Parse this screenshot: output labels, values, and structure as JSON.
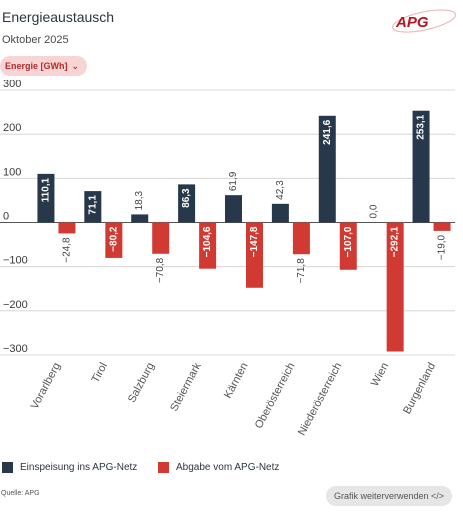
{
  "header": {
    "title": "Energieaustausch",
    "subtitle": "Oktober 2025",
    "logo_text": "APG"
  },
  "filter": {
    "label": "Energie [GWh]"
  },
  "footer": {
    "source": "Quelle: APG",
    "reuse_button": "Grafik weiterverwenden </>"
  },
  "colors": {
    "einspeisung": "#263849",
    "abgabe": "#d13a32",
    "accent": "#c4262e"
  },
  "chart_data": {
    "type": "bar",
    "categories": [
      "Vorarlberg",
      "Tirol",
      "Salzburg",
      "Steiermark",
      "Kärnten",
      "Oberösterreich",
      "Niederösterreich",
      "Wien",
      "Burgenland"
    ],
    "series": [
      {
        "name": "Einspeisung ins APG-Netz",
        "values": [
          110.1,
          71.1,
          18.3,
          86.3,
          61.9,
          42.3,
          241.6,
          0.0,
          253.1
        ],
        "labels": [
          "110,1",
          "71,1",
          "18,3",
          "86,3",
          "61,9",
          "42,3",
          "241,6",
          "0,0",
          "253,1"
        ]
      },
      {
        "name": "Abgabe vom APG-Netz",
        "values": [
          -24.8,
          -80.2,
          -70.8,
          -104.6,
          -147.8,
          -71.8,
          -107.0,
          -292.1,
          -19.0
        ],
        "labels": [
          "−24,8",
          "−80,2",
          "−70,8",
          "−104,6",
          "−147,8",
          "−71,8",
          "−107,0",
          "−292,1",
          "−19,0"
        ]
      }
    ],
    "yticks": [
      "300",
      "200",
      "100",
      "0",
      "−100",
      "−200",
      "−300"
    ],
    "ylim": [
      -300,
      300
    ],
    "grid": true,
    "legend": "bottom-left"
  }
}
